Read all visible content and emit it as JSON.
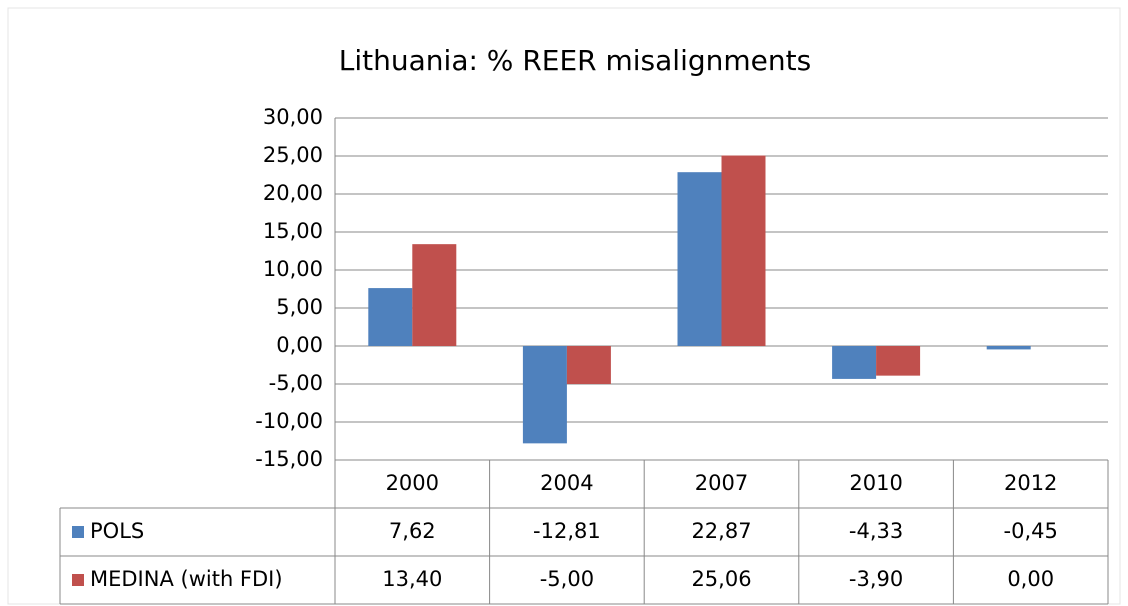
{
  "chart_data": {
    "type": "bar",
    "title": "Lithuania: % REER misalignments",
    "categories": [
      "2000",
      "2004",
      "2007",
      "2010",
      "2012"
    ],
    "series": [
      {
        "name": "POLS",
        "color": "#4f81bd",
        "values": [
          7.62,
          -12.81,
          22.87,
          -4.33,
          -0.45
        ],
        "value_labels": [
          "7,62",
          "-12,81",
          "22,87",
          "-4,33",
          "-0,45"
        ]
      },
      {
        "name": "MEDINA (with FDI)",
        "color": "#c0504d",
        "values": [
          13.4,
          -5,
          25.06,
          -3.9,
          0
        ],
        "value_labels": [
          "13,40",
          "-5,00",
          "25,06",
          "-3,90",
          "0,00"
        ]
      }
    ],
    "ylim": [
      -15,
      30
    ],
    "yticks": [
      {
        "value": -15,
        "label": "-15,00"
      },
      {
        "value": -10,
        "label": "-10,00"
      },
      {
        "value": -5,
        "label": "-5,00"
      },
      {
        "value": 0,
        "label": "0,00"
      },
      {
        "value": 5,
        "label": "5,00"
      },
      {
        "value": 10,
        "label": "10,00"
      },
      {
        "value": 15,
        "label": "15,00"
      },
      {
        "value": 20,
        "label": "20,00"
      },
      {
        "value": 25,
        "label": "25,00"
      },
      {
        "value": 30,
        "label": "30,00"
      }
    ],
    "grid": true
  }
}
